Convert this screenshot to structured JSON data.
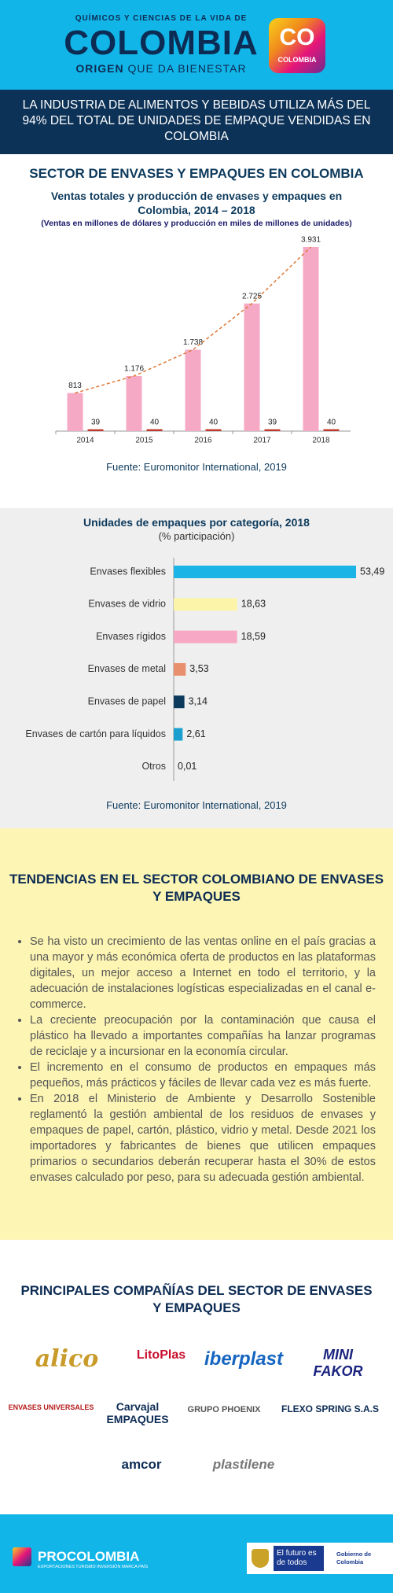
{
  "header": {
    "kicker": "QUÍMICOS Y CIENCIAS DE LA VIDA DE",
    "brand": "COLOMBIA",
    "tagline_1": "ORIGEN",
    "tagline_2": "QUE DA BIENESTAR",
    "logo_text": "CO",
    "logo_caption": "COLOMBIA"
  },
  "headline": "LA INDUSTRIA DE ALIMENTOS Y BEBIDAS UTILIZA MÁS DEL 94% DEL TOTAL DE UNIDADES DE EMPAQUE VENDIDAS EN COLOMBIA",
  "section_title": "SECTOR DE ENVASES Y EMPAQUES EN COLOMBIA",
  "chart_data": [
    {
      "type": "bar",
      "title": "Ventas totales y producción de envases y empaques en Colombia, 2014 – 2018",
      "subtitle": "(Ventas en millones de dólares y producción en miles de millones de unidades)",
      "categories": [
        "2014",
        "2015",
        "2016",
        "2017",
        "2018"
      ],
      "series": [
        {
          "color": "#f6a9c4",
          "values": [
            813,
            1176,
            1738,
            2725,
            3931
          ],
          "value_labels": [
            "813",
            "1.176",
            "1.738",
            "2.725",
            "3.931"
          ]
        },
        {
          "color": "#c0392b",
          "values": [
            39,
            40,
            40,
            39,
            40
          ]
        }
      ],
      "trend_color": "#e07a3a",
      "source": "Fuente: Euromonitor International, 2019"
    },
    {
      "type": "barh",
      "title": "Unidades de empaques por categoría, 2018",
      "subtitle": "(% participación)",
      "categories": [
        "Envases flexibles",
        "Envases de vidrio",
        "Envases rígidos",
        "Envases de metal",
        "Envases de papel",
        "Envases de cartón para líquidos",
        "Otros"
      ],
      "values": [
        53.49,
        18.63,
        18.59,
        3.53,
        3.14,
        2.61,
        0.01
      ],
      "value_labels": [
        "53,49",
        "18,63",
        "18,59",
        "3,53",
        "3,14",
        "2,61",
        "0,01"
      ],
      "colors": [
        "#1ab4e6",
        "#fbf4a9",
        "#f7a8c4",
        "#e8906e",
        "#0b3a5c",
        "#1a9fcf",
        "#cccccc"
      ],
      "source": "Fuente: Euromonitor International, 2019"
    }
  ],
  "trends": {
    "title": "TENDENCIAS EN EL SECTOR COLOMBIANO DE ENVASES Y EMPAQUES",
    "items": [
      "Se ha visto un crecimiento de las ventas online en el país gracias a una mayor y más económica oferta de productos en las plataformas digitales, un mejor acceso a Internet en todo el territorio, y la adecuación de instalaciones logísticas especializadas en el canal e-commerce.",
      "La creciente preocupación por la contaminación que causa el plástico ha llevado a importantes compañías ha lanzar programas de reciclaje y a incursionar en la economía circular.",
      "El incremento en el consumo de productos en empaques más pequeños, más prácticos y fáciles de llevar cada vez es más fuerte.",
      "En 2018 el Ministerio de Ambiente y Desarrollo Sostenible reglamentó la gestión ambiental de los residuos de envases y empaques de papel, cartón, plástico, vidrio y metal. Desde 2021 los importadores y fabricantes de bienes que utilicen empaques primarios o secundarios deberán recuperar hasta el 30% de estos envases calculado por peso, para su adecuada gestión ambiental."
    ]
  },
  "companies": {
    "title": "PRINCIPALES COMPAÑÍAS DEL SECTOR DE ENVASES Y EMPAQUES",
    "logos": [
      "alico",
      "LitoPlas",
      "iberplast",
      "MINI FAKOR",
      "ENVASES UNIVERSALES",
      "Carvajal EMPAQUES",
      "GRUPO PHOENIX",
      "FLEXO SPRING S.A.S",
      "amcor",
      "plastilene"
    ]
  },
  "footer": {
    "brand": "PROCOLOMBIA",
    "brand_caption": "EXPORTACIONES TURISMO INVERSIÓN MARCA PAÍS",
    "motto": "El futuro es de todos",
    "gov": "Gobierno de Colombia"
  }
}
